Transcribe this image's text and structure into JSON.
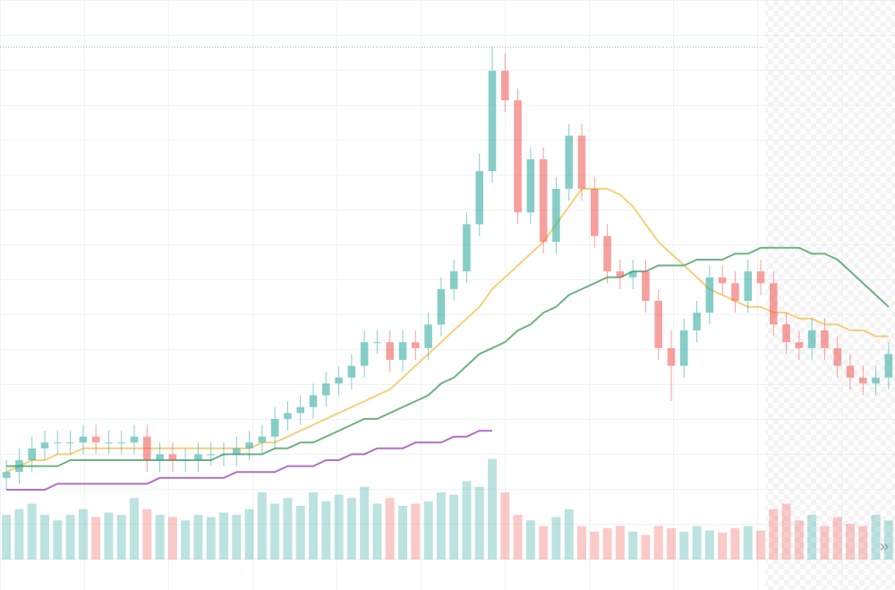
{
  "chart_data": {
    "type": "candlestick",
    "open": [
      19,
      20,
      22,
      24,
      25,
      25,
      25,
      26,
      25,
      25,
      25,
      26,
      22,
      23,
      22,
      22,
      23,
      23,
      23,
      24,
      25,
      26,
      29,
      30,
      31,
      33,
      35,
      36,
      38,
      42,
      42,
      39,
      42,
      41,
      45,
      51,
      54,
      62,
      71,
      88,
      83,
      64,
      73,
      59,
      68,
      77,
      68,
      60,
      54,
      53,
      54,
      49,
      41,
      38,
      44,
      47,
      53,
      52,
      49,
      54,
      52,
      45,
      42,
      41,
      44,
      41,
      38,
      36,
      35,
      36
    ],
    "high": [
      22,
      24,
      26,
      27,
      27,
      27,
      28,
      28,
      27,
      27,
      28,
      28,
      25,
      25,
      24,
      25,
      25,
      25,
      26,
      27,
      28,
      31,
      32,
      33,
      35,
      37,
      38,
      40,
      44,
      44,
      44,
      44,
      44,
      47,
      53,
      56,
      64,
      74,
      92,
      91,
      85,
      75,
      75,
      70,
      79,
      79,
      70,
      62,
      56,
      56,
      56,
      51,
      44,
      46,
      49,
      55,
      55,
      54,
      56,
      56,
      54,
      47,
      44,
      46,
      46,
      43,
      40,
      38,
      38,
      42
    ],
    "low": [
      17,
      18,
      20,
      22,
      23,
      23,
      23,
      23,
      23,
      23,
      23,
      20,
      20,
      20,
      20,
      20,
      21,
      21,
      21,
      22,
      23,
      24,
      27,
      28,
      29,
      31,
      33,
      34,
      36,
      40,
      37,
      37,
      39,
      39,
      43,
      49,
      52,
      60,
      69,
      81,
      62,
      62,
      57,
      57,
      66,
      66,
      58,
      52,
      51,
      51,
      47,
      39,
      32,
      36,
      42,
      45,
      50,
      47,
      47,
      50,
      43,
      40,
      39,
      39,
      39,
      36,
      34,
      33,
      33,
      34
    ],
    "close": [
      20,
      22,
      24,
      25,
      25,
      25,
      26,
      25,
      25,
      25,
      26,
      22,
      23,
      22,
      22,
      23,
      23,
      23,
      24,
      25,
      26,
      29,
      30,
      31,
      33,
      35,
      36,
      38,
      42,
      42,
      39,
      42,
      41,
      45,
      51,
      54,
      62,
      71,
      88,
      83,
      64,
      73,
      59,
      68,
      77,
      68,
      60,
      54,
      53,
      54,
      49,
      41,
      38,
      44,
      47,
      53,
      52,
      49,
      54,
      52,
      45,
      42,
      41,
      44,
      41,
      38,
      36,
      35,
      36,
      40
    ],
    "up_color": "#26a69a",
    "down_color": "#ef5350",
    "ylim": [
      0,
      100
    ],
    "grid": true,
    "volume": {
      "ylim": [
        0,
        100
      ],
      "values": [
        40,
        45,
        50,
        40,
        35,
        40,
        45,
        38,
        42,
        40,
        55,
        45,
        40,
        38,
        35,
        40,
        38,
        42,
        40,
        45,
        60,
        50,
        55,
        48,
        60,
        52,
        58,
        55,
        65,
        50,
        55,
        48,
        50,
        52,
        60,
        58,
        70,
        65,
        90,
        60,
        40,
        35,
        30,
        38,
        45,
        30,
        25,
        28,
        30,
        25,
        22,
        30,
        28,
        25,
        30,
        26,
        24,
        28,
        30,
        26,
        45,
        50,
        35,
        40,
        30,
        38,
        32,
        30,
        40,
        35
      ]
    },
    "moving_averages": [
      {
        "color": "#f2c14e",
        "values": [
          20,
          21,
          22,
          22,
          23,
          23,
          24,
          24,
          24,
          24,
          24,
          24,
          24,
          24,
          24,
          24,
          24,
          24,
          24,
          24,
          25,
          25,
          26,
          27,
          28,
          29,
          30,
          31,
          32,
          33,
          34,
          36,
          38,
          40,
          42,
          44,
          46,
          48,
          51,
          53,
          55,
          57,
          59,
          62,
          65,
          68,
          68,
          68,
          67,
          65,
          62,
          59,
          57,
          55,
          53,
          51,
          50,
          49,
          48,
          48,
          47,
          47,
          46,
          46,
          45,
          45,
          44,
          44,
          43,
          43
        ]
      },
      {
        "color": "#3d9a5a",
        "values": [
          21,
          21,
          21,
          21,
          21,
          22,
          22,
          22,
          22,
          22,
          22,
          22,
          22,
          22,
          22,
          22,
          22,
          23,
          23,
          23,
          23,
          24,
          24,
          25,
          25,
          26,
          27,
          28,
          29,
          29,
          30,
          31,
          32,
          33,
          35,
          36,
          38,
          40,
          41,
          42,
          44,
          45,
          47,
          48,
          50,
          51,
          52,
          53,
          53,
          54,
          54,
          55,
          55,
          55,
          56,
          56,
          56,
          57,
          57,
          58,
          58,
          58,
          58,
          57,
          57,
          56,
          54,
          52,
          50,
          48
        ]
      },
      {
        "color": "#9b3fb0",
        "values": [
          17,
          17,
          17,
          17,
          18,
          18,
          18,
          18,
          18,
          18,
          18,
          18,
          19,
          19,
          19,
          19,
          19,
          19,
          20,
          20,
          20,
          20,
          21,
          21,
          21,
          22,
          22,
          23,
          23,
          24,
          24,
          24,
          25,
          25,
          25,
          26,
          26,
          27,
          27,
          null,
          null,
          null,
          null,
          null,
          null,
          null,
          null,
          null,
          null,
          null,
          null,
          null,
          null,
          null,
          null,
          null,
          null,
          null,
          null,
          null,
          null,
          null,
          null,
          null,
          null,
          null,
          null,
          null,
          null,
          null
        ]
      }
    ]
  },
  "scroll_button": "»"
}
